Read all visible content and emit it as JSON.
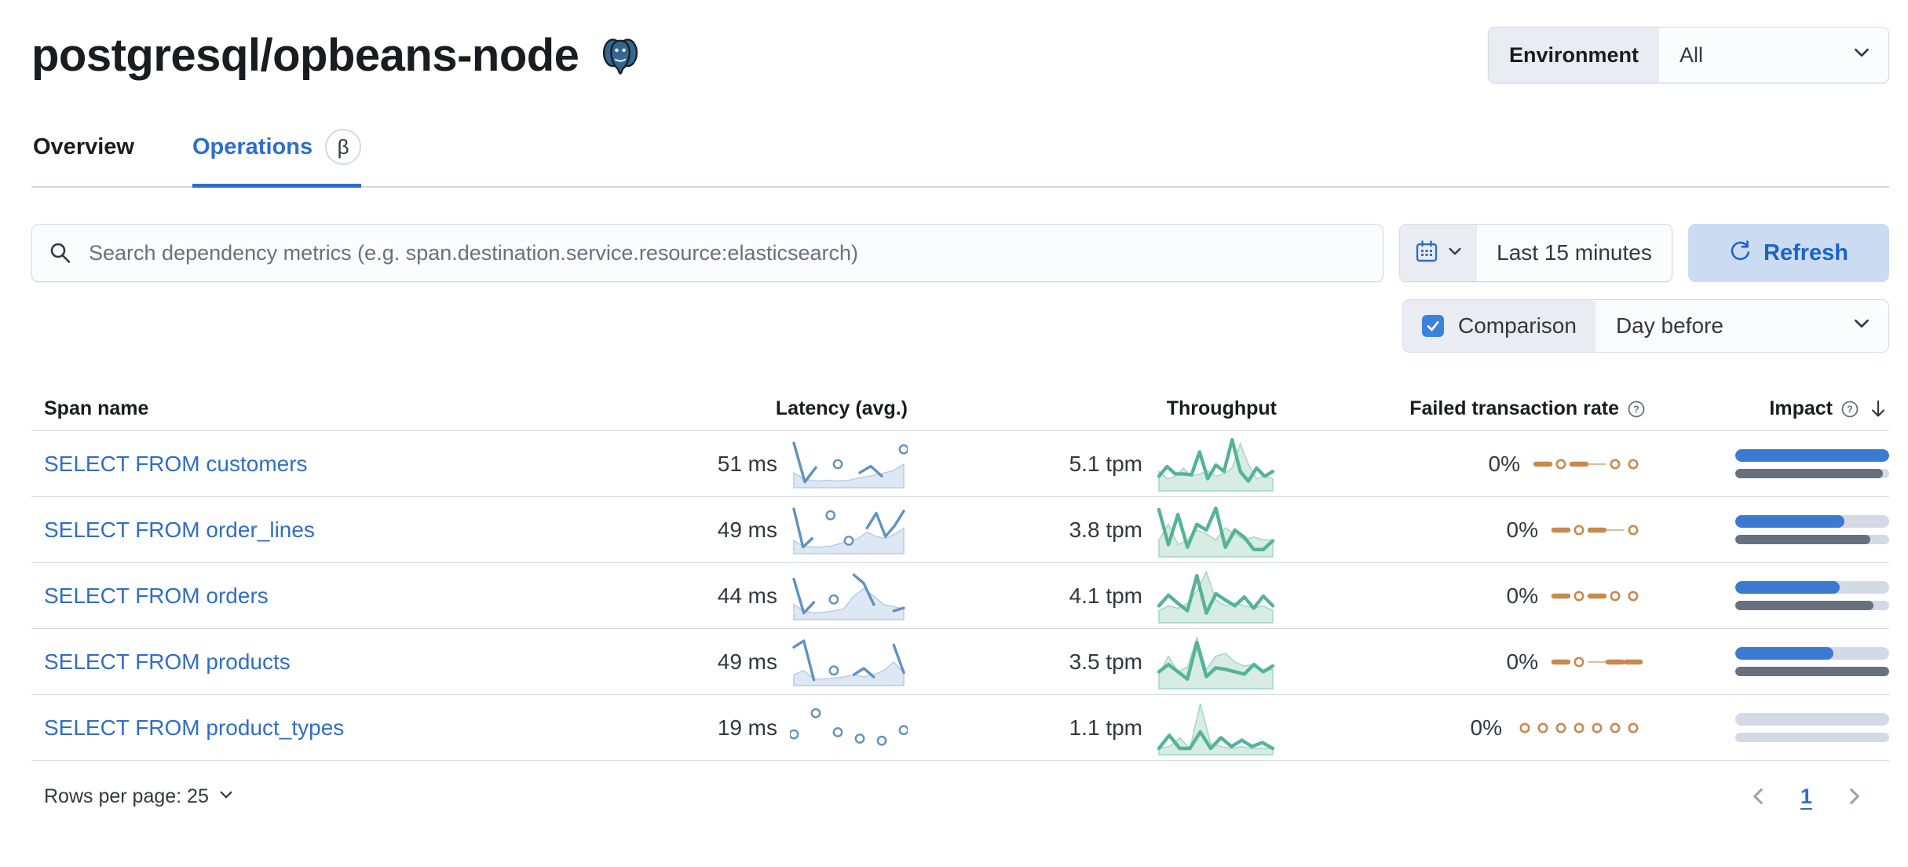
{
  "page_title": "postgresql/opbeans-node",
  "environment": {
    "label": "Environment",
    "value": "All"
  },
  "tabs": [
    {
      "label": "Overview",
      "active": false
    },
    {
      "label": "Operations",
      "active": true,
      "beta": "β"
    }
  ],
  "toolbar": {
    "search_placeholder": "Search dependency metrics (e.g. span.destination.service.resource:elasticsearch)",
    "time_range": "Last 15 minutes",
    "refresh_label": "Refresh",
    "comparison": {
      "label": "Comparison",
      "checked": true,
      "value": "Day before"
    }
  },
  "table": {
    "headers": {
      "span_name": "Span name",
      "latency": "Latency (avg.)",
      "throughput": "Throughput",
      "failed_rate": "Failed transaction rate",
      "impact": "Impact"
    },
    "rows": [
      {
        "span_name": "SELECT FROM customers",
        "latency": "51 ms",
        "throughput": "5.1 tpm",
        "failed_rate": "0%",
        "latency_spark": {
          "comparison": [
            0.3,
            0.14,
            0.1,
            0.12,
            0.1,
            0.12,
            0.18,
            0.22,
            0.28,
            0.34,
            0.5
          ],
          "current": [
            1,
            0.08,
            0.42,
            null,
            0.5,
            null,
            0.3,
            0.45,
            0.22,
            null,
            0.85
          ]
        },
        "throughput_spark": {
          "comparison": [
            0.35,
            0.2,
            0.25,
            0.42,
            0.25,
            0.3,
            0.36,
            0.25,
            0.3,
            0.42,
            0.92,
            0.5,
            0.2,
            0.26,
            0.2
          ],
          "current": [
            0.25,
            0.45,
            0.3,
            0.3,
            0.28,
            0.75,
            0.2,
            0.48,
            0.35,
            1,
            0.35,
            0.15,
            0.42,
            0.25,
            0.35
          ]
        },
        "failed_pattern": [
          "dash",
          "dot",
          "dash",
          "thin",
          "dot",
          "dot"
        ],
        "impact": {
          "current": 100,
          "previous": 96
        }
      },
      {
        "span_name": "SELECT FROM order_lines",
        "latency": "49 ms",
        "throughput": "3.8 tpm",
        "failed_rate": "0%",
        "latency_spark": {
          "comparison": [
            0.25,
            0.12,
            0.1,
            0.1,
            0.12,
            0.18,
            0.25,
            0.3,
            0.45,
            0.35,
            0.3,
            0.4,
            0.55
          ],
          "current": [
            1,
            0.1,
            0.3,
            null,
            0.85,
            null,
            0.25,
            null,
            0.55,
            0.9,
            0.35,
            0.6,
            0.95
          ]
        },
        "throughput_spark": {
          "comparison": [
            0.3,
            0.62,
            0.2,
            0.3,
            0.5,
            0.42,
            0.3,
            0.55,
            0.42,
            0.3,
            0.36,
            0.3,
            0.3
          ],
          "current": [
            0.92,
            0.2,
            0.82,
            0.15,
            0.62,
            0.5,
            0.95,
            0.15,
            0.5,
            0.35,
            0.1,
            0.1,
            0.28
          ]
        },
        "failed_pattern": [
          "dash",
          "dot",
          "dash",
          "thin",
          "dot"
        ],
        "impact": {
          "current": 71,
          "previous": 88
        }
      },
      {
        "span_name": "SELECT FROM orders",
        "latency": "44 ms",
        "throughput": "4.1 tpm",
        "failed_rate": "0%",
        "latency_spark": {
          "comparison": [
            0.3,
            0.15,
            0.1,
            0.12,
            0.15,
            0.2,
            0.5,
            0.68,
            0.5,
            0.3,
            0.25,
            0.2
          ],
          "current": [
            0.9,
            0.1,
            0.35,
            null,
            0.42,
            null,
            1,
            0.8,
            0.3,
            null,
            0.15,
            0.22
          ]
        },
        "throughput_spark": {
          "comparison": [
            0.2,
            0.3,
            0.25,
            0.35,
            0.6,
            1,
            0.42,
            0.3,
            0.36,
            0.3,
            0.25,
            0.3,
            0.2
          ],
          "current": [
            0.3,
            0.52,
            0.35,
            0.2,
            0.92,
            0.15,
            0.55,
            0.42,
            0.3,
            0.48,
            0.25,
            0.5,
            0.3
          ]
        },
        "failed_pattern": [
          "dash",
          "dot",
          "dash",
          "dot",
          "dot"
        ],
        "impact": {
          "current": 68,
          "previous": 90
        }
      },
      {
        "span_name": "SELECT FROM products",
        "latency": "49 ms",
        "throughput": "3.5 tpm",
        "failed_rate": "0%",
        "latency_spark": {
          "comparison": [
            0.2,
            0.3,
            0.1,
            0.1,
            0.12,
            0.15,
            0.2,
            0.15,
            0.2,
            0.3,
            0.5,
            0.25
          ],
          "current": [
            0.85,
            1,
            0.08,
            null,
            0.3,
            null,
            0.2,
            0.35,
            0.15,
            null,
            0.9,
            0.25
          ]
        },
        "throughput_spark": {
          "comparison": [
            0.25,
            0.62,
            0.3,
            0.4,
            1,
            0.35,
            0.62,
            0.68,
            0.5,
            0.42,
            0.45,
            0.3,
            0.35
          ],
          "current": [
            0.3,
            0.45,
            0.3,
            0.15,
            0.9,
            0.2,
            0.38,
            0.35,
            0.3,
            0.25,
            0.45,
            0.3,
            0.42
          ]
        },
        "failed_pattern": [
          "dash",
          "dot",
          "thin",
          "dash",
          "dash"
        ],
        "impact": {
          "current": 64,
          "previous": 100
        }
      },
      {
        "span_name": "SELECT FROM product_types",
        "latency": "19 ms",
        "throughput": "1.1 tpm",
        "failed_rate": "0%",
        "latency_spark": {
          "comparison": [],
          "current": [
            0.35,
            null,
            0.85,
            null,
            0.4,
            null,
            0.25,
            null,
            0.2,
            null,
            0.45
          ]
        },
        "throughput_spark": {
          "comparison": [
            0.08,
            0.12,
            0.3,
            0.08,
            1,
            0.18,
            0.12,
            0.08,
            0.12,
            0.08,
            0.08,
            0.08
          ],
          "current": [
            0.08,
            0.35,
            0.08,
            0.08,
            0.42,
            0.08,
            0.3,
            0.12,
            0.25,
            0.12,
            0.2,
            0.08
          ]
        },
        "failed_pattern": [
          "dot",
          "dot",
          "dot",
          "dot",
          "dot",
          "dot",
          "dot"
        ],
        "impact": {
          "current": 0,
          "previous": 0
        }
      }
    ]
  },
  "footer": {
    "rows_per_page": "Rows per page: 25",
    "page": "1"
  },
  "colors": {
    "primary": "#2f6dcb",
    "latency_line": "#6092C0",
    "latency_fill": "#DDE8F4",
    "latency_comp_line": "#B7CCE3",
    "throughput_line": "#54B399",
    "throughput_fill": "#D7ECE3",
    "throughput_comp_line": "#9FD6C3",
    "failed_line": "#C9894F",
    "failed_thin": "#D9B28A",
    "impact_bar": "#3c79d1",
    "impact_comparison": "#69707d",
    "bar_track": "#d3dae6"
  }
}
